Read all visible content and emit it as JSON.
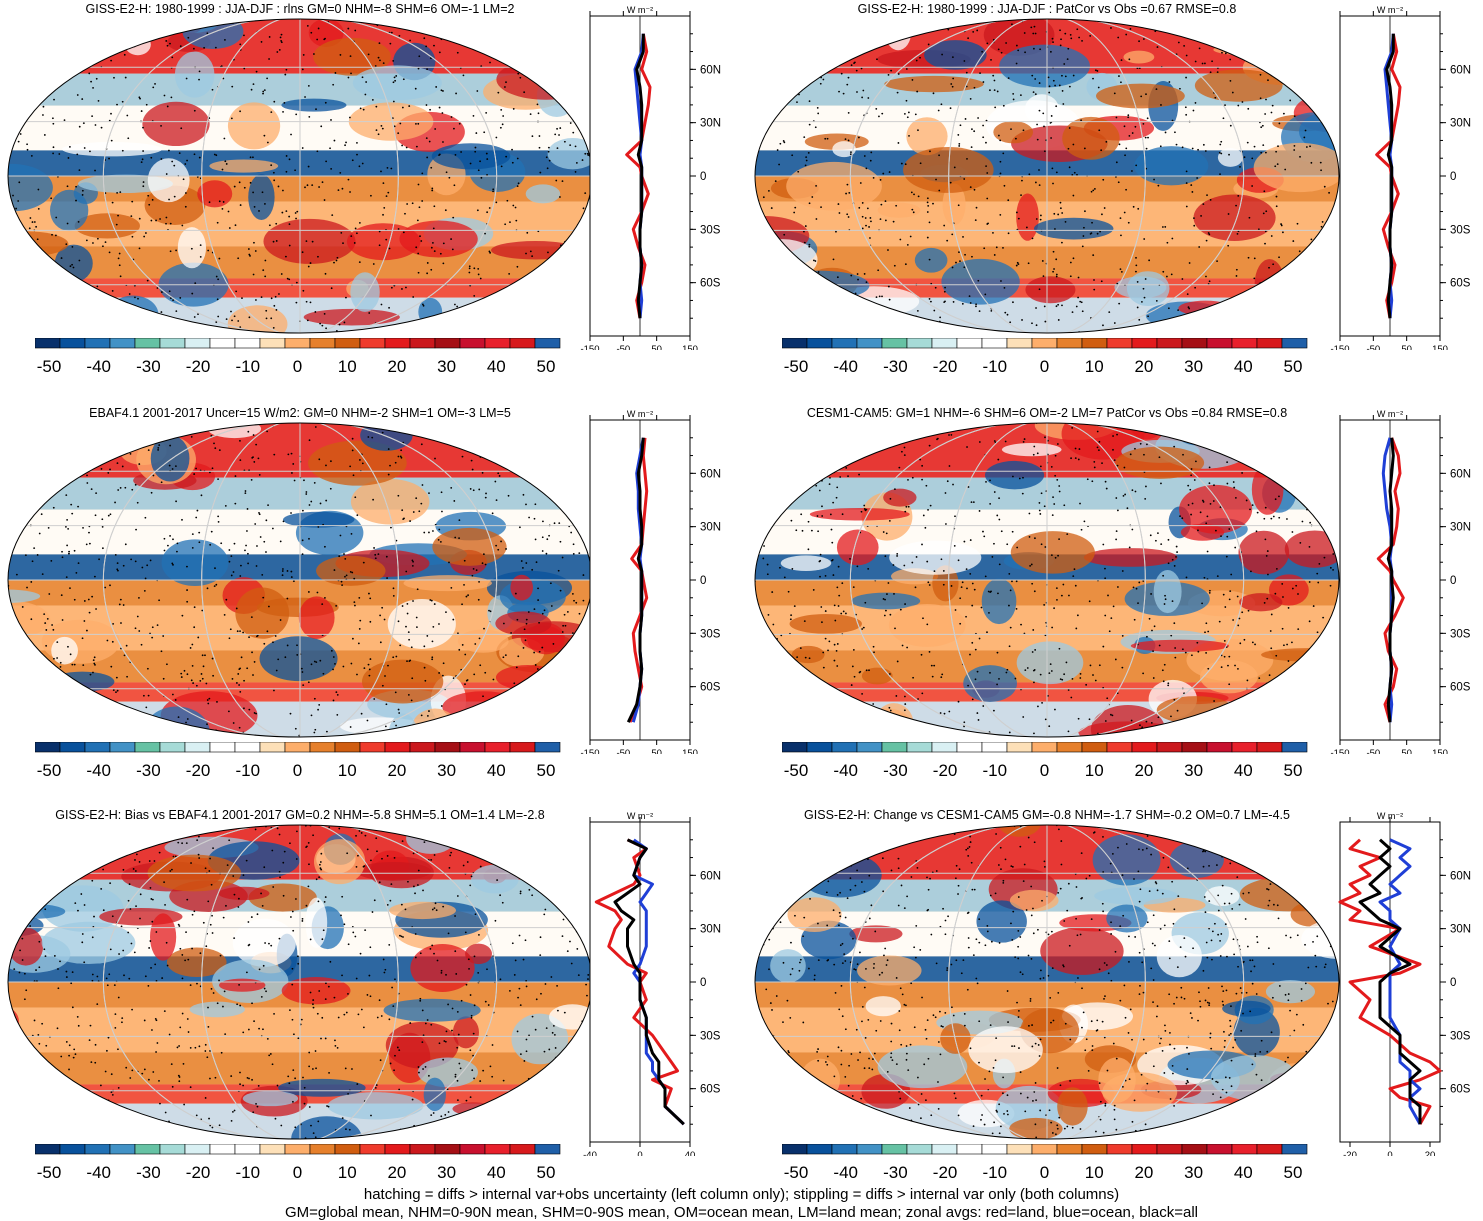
{
  "panels": [
    {
      "title": "GISS-E2-H: 1980-1999 : JJA-DJF : rlns GM=0 NHM=-8 SHM=6 OM=-1 LM=2",
      "zonal_ticks": [
        "-150",
        "-50",
        "50",
        "150"
      ],
      "zonal_xlim": [
        -150,
        150
      ]
    },
    {
      "title": "GISS-E2-H: 1980-1999 : JJA-DJF : PatCor vs Obs =0.67 RMSE=0.8",
      "zonal_ticks": [
        "-150",
        "-50",
        "50",
        "150"
      ],
      "zonal_xlim": [
        -150,
        150
      ]
    },
    {
      "title": "EBAF4.1 2001-2017 Uncer=15 W/m2: GM=0 NHM=-2 SHM=1 OM=-3 LM=5",
      "zonal_ticks": [
        "-150",
        "-50",
        "50",
        "150"
      ],
      "zonal_xlim": [
        -150,
        150
      ]
    },
    {
      "title": "CESM1-CAM5: GM=1 NHM=-6 SHM=6 OM=-2 LM=7 PatCor vs Obs =0.84 RMSE=0.8",
      "zonal_ticks": [
        "-150",
        "-50",
        "50",
        "150"
      ],
      "zonal_xlim": [
        -150,
        150
      ]
    },
    {
      "title": "GISS-E2-H: Bias vs EBAF4.1 2001-2017 GM=0.2 NHM=-5.8 SHM=5.1 OM=1.4 LM=-2.8",
      "zonal_ticks": [
        "-40",
        "0",
        "40"
      ],
      "zonal_xlim": [
        -40,
        40
      ]
    },
    {
      "title": "GISS-E2-H: Change vs CESM1-CAM5 GM=-0.8 NHM=-1.7 SHM=-0.2 OM=0.7 LM=-4.5",
      "zonal_ticks": [
        "-20",
        "0",
        "20"
      ],
      "zonal_xlim": [
        -25,
        25
      ]
    }
  ],
  "zonal_unit": "W m⁻²",
  "lat_labels": [
    "60N",
    "30N",
    "0",
    "30S",
    "60S"
  ],
  "colorbar": {
    "labels": [
      "-50",
      "-40",
      "-30",
      "-20",
      "-10",
      "0",
      "10",
      "20",
      "30",
      "40",
      "50"
    ],
    "colors": [
      "#08306b",
      "#08519c",
      "#2171b5",
      "#4292c6",
      "#66c2a4",
      "#a6dbd7",
      "#d9f0f3",
      "#ffffff",
      "#ffffff",
      "#fde0b8",
      "#fdae6b",
      "#e6802c",
      "#d05d10",
      "#ef3b2c",
      "#e31a1c",
      "#cb181d",
      "#a50f15",
      "#c8102e",
      "#e8202c",
      "#d7191c",
      "#1f5fa8"
    ]
  },
  "footer": [
    "hatching = diffs > internal var+obs uncertainty (left column only); stippling = diffs > internal var only (both columns)",
    "GM=global mean, NHM=0-90N mean, SHM=0-90S mean, OM=ocean mean, LM=land mean; zonal avgs: red=land, blue=ocean, black=all"
  ],
  "chart_data": [
    {
      "type": "line",
      "title": "GISS-E2-H: 1980-1999 : JJA-DJF : rlns GM=0 NHM=-8 SHM=6 OM=-1 LM=2",
      "xlabel": "W m-2",
      "xlim": [
        -150,
        150
      ],
      "ylim": [
        -90,
        90
      ],
      "lat": [
        80,
        70,
        60,
        50,
        40,
        30,
        20,
        12,
        5,
        0,
        -10,
        -20,
        -30,
        -40,
        -50,
        -60,
        -70,
        -80
      ],
      "series": [
        {
          "name": "land",
          "color": "red",
          "values": [
            10,
            20,
            5,
            30,
            25,
            15,
            5,
            -40,
            0,
            5,
            25,
            5,
            -20,
            -5,
            15,
            5,
            -10,
            0
          ]
        },
        {
          "name": "ocean",
          "color": "blue",
          "values": [
            10,
            5,
            -15,
            -10,
            -5,
            0,
            5,
            0,
            5,
            5,
            5,
            5,
            0,
            0,
            5,
            0,
            5,
            0
          ]
        },
        {
          "name": "all",
          "color": "black",
          "values": [
            10,
            10,
            -10,
            0,
            5,
            5,
            5,
            -5,
            5,
            5,
            5,
            5,
            0,
            0,
            5,
            0,
            -5,
            0
          ]
        }
      ]
    },
    {
      "type": "line",
      "title": "GISS-E2-H: 1980-1999 : JJA-DJF : PatCor vs Obs =0.67 RMSE=0.8",
      "xlabel": "W m-2",
      "xlim": [
        -150,
        150
      ],
      "ylim": [
        -90,
        90
      ],
      "lat": [
        80,
        70,
        60,
        50,
        40,
        30,
        20,
        12,
        5,
        0,
        -10,
        -20,
        -30,
        -40,
        -50,
        -60,
        -70,
        -80
      ],
      "series": [
        {
          "name": "land",
          "color": "red",
          "values": [
            10,
            20,
            5,
            30,
            25,
            15,
            5,
            -40,
            0,
            5,
            25,
            5,
            -20,
            -5,
            15,
            5,
            -10,
            0
          ]
        },
        {
          "name": "ocean",
          "color": "blue",
          "values": [
            10,
            5,
            -15,
            -10,
            -5,
            0,
            5,
            0,
            5,
            5,
            5,
            5,
            0,
            0,
            5,
            0,
            5,
            0
          ]
        },
        {
          "name": "all",
          "color": "black",
          "values": [
            10,
            10,
            -10,
            0,
            5,
            5,
            5,
            -5,
            5,
            5,
            5,
            5,
            0,
            0,
            5,
            0,
            -5,
            0
          ]
        }
      ]
    },
    {
      "type": "line",
      "title": "EBAF4.1 2001-2017 Uncer=15 W/m2: GM=0 NHM=-2 SHM=1 OM=-3 LM=5",
      "xlabel": "W m-2",
      "xlim": [
        -150,
        150
      ],
      "ylim": [
        -90,
        90
      ],
      "lat": [
        80,
        70,
        60,
        50,
        40,
        30,
        20,
        12,
        5,
        0,
        -10,
        -20,
        -30,
        -40,
        -50,
        -60,
        -70,
        -80
      ],
      "series": [
        {
          "name": "land",
          "color": "red",
          "values": [
            15,
            10,
            15,
            20,
            15,
            10,
            5,
            -25,
            5,
            10,
            20,
            0,
            -20,
            -15,
            -5,
            5,
            -10,
            -30
          ]
        },
        {
          "name": "ocean",
          "color": "blue",
          "values": [
            10,
            0,
            -10,
            -5,
            -5,
            0,
            5,
            0,
            5,
            5,
            5,
            5,
            0,
            0,
            5,
            0,
            -5,
            -20
          ]
        },
        {
          "name": "all",
          "color": "black",
          "values": [
            10,
            5,
            -5,
            0,
            0,
            5,
            5,
            -5,
            5,
            5,
            5,
            5,
            0,
            0,
            5,
            0,
            -10,
            -35
          ]
        }
      ]
    },
    {
      "type": "line",
      "title": "CESM1-CAM5: GM=1 NHM=-6 SHM=6 OM=-2 LM=7 PatCor vs Obs =0.84 RMSE=0.8",
      "xlabel": "W m-2",
      "xlim": [
        -150,
        150
      ],
      "ylim": [
        -90,
        90
      ],
      "lat": [
        80,
        70,
        60,
        50,
        40,
        30,
        20,
        12,
        5,
        0,
        -10,
        -20,
        -30,
        -40,
        -50,
        -60,
        -70,
        -80
      ],
      "series": [
        {
          "name": "land",
          "color": "red",
          "values": [
            5,
            25,
            30,
            15,
            25,
            20,
            10,
            -35,
            0,
            10,
            40,
            15,
            -15,
            -5,
            20,
            10,
            -15,
            0
          ]
        },
        {
          "name": "ocean",
          "color": "blue",
          "values": [
            0,
            -15,
            -20,
            -15,
            -10,
            0,
            5,
            0,
            5,
            5,
            5,
            5,
            0,
            0,
            5,
            0,
            5,
            0
          ]
        },
        {
          "name": "all",
          "color": "black",
          "values": [
            5,
            10,
            5,
            0,
            5,
            5,
            5,
            -5,
            5,
            5,
            10,
            5,
            0,
            0,
            5,
            0,
            -5,
            0
          ]
        }
      ]
    },
    {
      "type": "line",
      "title": "GISS-E2-H: Bias vs EBAF4.1 2001-2017 GM=0.2 NHM=-5.8 SHM=5.1 OM=1.4 LM=-2.8",
      "xlabel": "W m-2",
      "xlim": [
        -40,
        40
      ],
      "ylim": [
        -90,
        90
      ],
      "lat": [
        80,
        75,
        70,
        60,
        55,
        50,
        45,
        40,
        35,
        30,
        20,
        10,
        5,
        0,
        -10,
        -20,
        -30,
        -40,
        -45,
        -50,
        -55,
        -60,
        -70,
        -80
      ],
      "series": [
        {
          "name": "land",
          "color": "red",
          "values": [
            -10,
            5,
            -5,
            0,
            -5,
            -20,
            -35,
            -20,
            -15,
            -20,
            -25,
            -10,
            5,
            0,
            5,
            -5,
            10,
            20,
            25,
            30,
            10,
            25,
            20,
            35
          ]
        },
        {
          "name": "ocean",
          "color": "blue",
          "values": [
            -5,
            5,
            0,
            -5,
            10,
            5,
            0,
            5,
            5,
            5,
            5,
            0,
            -5,
            0,
            0,
            5,
            5,
            5,
            10,
            10,
            15,
            20,
            20,
            35
          ]
        },
        {
          "name": "all",
          "color": "black",
          "values": [
            -10,
            5,
            0,
            -5,
            0,
            -10,
            -20,
            -15,
            -5,
            -10,
            -10,
            -5,
            0,
            0,
            0,
            5,
            5,
            10,
            15,
            15,
            15,
            20,
            20,
            35
          ]
        }
      ]
    },
    {
      "type": "line",
      "title": "GISS-E2-H: Change vs CESM1-CAM5 GM=-0.8 NHM=-1.7 SHM=-0.2 OM=0.7 LM=-4.5",
      "xlabel": "W m-2",
      "xlim": [
        -25,
        25
      ],
      "ylim": [
        -90,
        90
      ],
      "lat": [
        80,
        75,
        70,
        65,
        60,
        55,
        50,
        45,
        40,
        35,
        30,
        20,
        10,
        5,
        0,
        -10,
        -20,
        -30,
        -40,
        -45,
        -50,
        -55,
        -60,
        -65,
        -70,
        -80
      ],
      "series": [
        {
          "name": "land",
          "color": "red",
          "values": [
            -15,
            -20,
            -5,
            -15,
            -10,
            -20,
            -15,
            -25,
            -15,
            -20,
            5,
            -10,
            15,
            5,
            -20,
            -10,
            -15,
            0,
            10,
            20,
            25,
            15,
            0,
            5,
            20,
            15
          ]
        },
        {
          "name": "ocean",
          "color": "blue",
          "values": [
            0,
            10,
            5,
            10,
            5,
            0,
            5,
            -5,
            0,
            0,
            5,
            0,
            5,
            0,
            0,
            0,
            0,
            5,
            5,
            5,
            10,
            10,
            15,
            10,
            10,
            15
          ]
        },
        {
          "name": "all",
          "color": "black",
          "values": [
            -5,
            0,
            -5,
            0,
            -5,
            -10,
            -5,
            -15,
            -10,
            -5,
            5,
            -5,
            10,
            0,
            -5,
            -5,
            -5,
            5,
            5,
            10,
            15,
            10,
            10,
            10,
            15,
            15
          ]
        }
      ]
    }
  ]
}
